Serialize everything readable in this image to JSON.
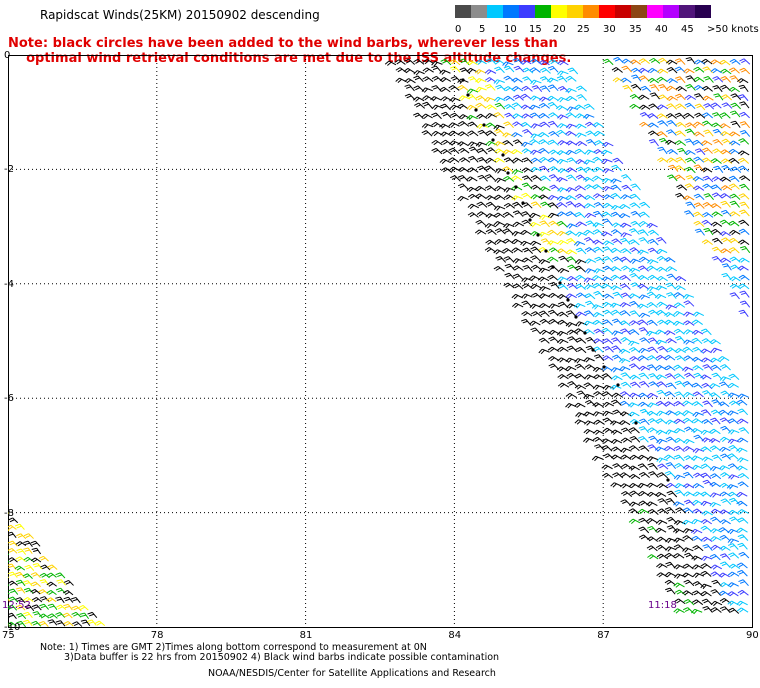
{
  "header": {
    "title": "Rapidscat Winds(25KM) 20150902 descending",
    "note_line1": "Note: black circles have been added to the wind barbs, wherever less than",
    "note_line2": "optimal wind retrieval conditions are met due to the ISS altitude changes."
  },
  "legend": {
    "colors": [
      "#4a4a4a",
      "#8c8c8c",
      "#00c8ff",
      "#0078ff",
      "#3c3cff",
      "#00b400",
      "#ffff00",
      "#ffd200",
      "#ff8c00",
      "#ff0000",
      "#c80000",
      "#8c4614",
      "#ff00ff",
      "#b400ff",
      "#50147a",
      "#280050"
    ],
    "labels": [
      "0",
      "5",
      "10",
      "15",
      "20",
      "25",
      "30",
      "35",
      "40",
      "45",
      ">50 knots"
    ]
  },
  "axes": {
    "y_labels": [
      "0",
      "-2",
      "-4",
      "-6",
      "-8",
      "-10"
    ],
    "x_labels": [
      "75",
      "78",
      "81",
      "84",
      "87",
      "90"
    ]
  },
  "times": {
    "left": "12:52",
    "right": "11:18"
  },
  "footer": {
    "note1": "Note: 1) Times are GMT 2)Times along bottom correspond to measurement at 0N",
    "note2": "3)Data buffer is 22 hrs from 20150902 4) Black wind barbs indicate possible contamination",
    "credit": "NOAA/NESDIS/Center for Satellite Applications and Research"
  }
}
